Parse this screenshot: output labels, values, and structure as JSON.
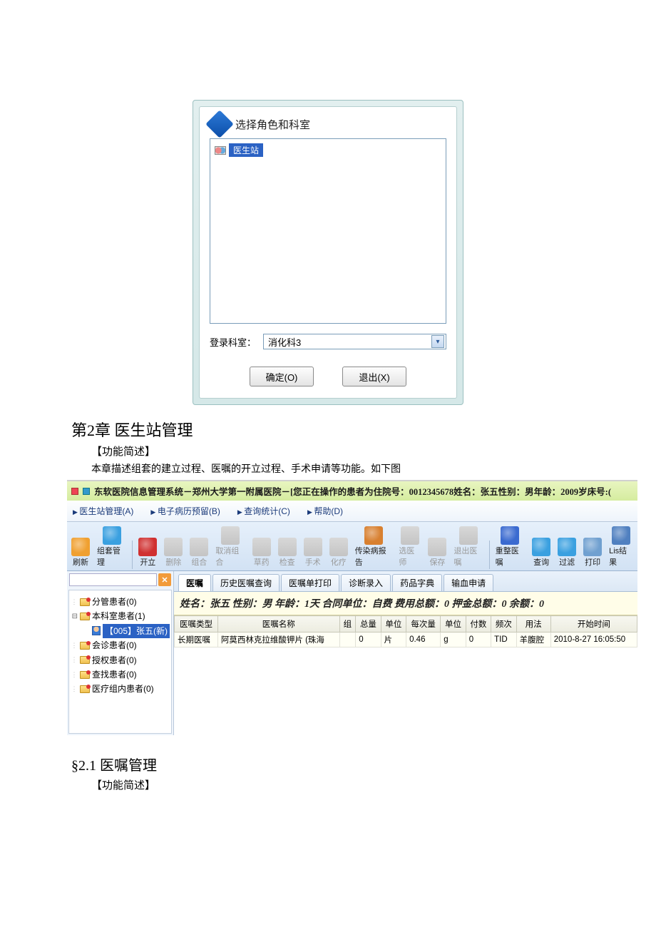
{
  "dialog": {
    "title": "选择角色和科室",
    "role_item": "医生站",
    "dept_label": "登录科室：",
    "dept_value": "消化科3",
    "ok_btn": "确定(O)",
    "exit_btn": "退出(X)"
  },
  "doc": {
    "chapter_title": "第2章  医生站管理",
    "func_heading": "【功能简述】",
    "func_body": "本章描述组套的建立过程、医嘱的开立过程、手术申请等功能。如下图",
    "section_2_1": "§2.1 医嘱管理",
    "func_heading2": "【功能简述】"
  },
  "app": {
    "titlebar": "东软医院信息管理系统－郑州大学第一附属医院－[您正在操作的患者为住院号：0012345678姓名：张五性别：男年龄：2009岁床号:(",
    "menus": [
      "医生站管理(A)",
      "电子病历预留(B)",
      "查询统计(C)",
      "帮助(D)"
    ],
    "toolbar": [
      {
        "label": "刷新",
        "color": "#f0a030",
        "enabled": true
      },
      {
        "label": "组套管理",
        "color": "#3aa0e0",
        "enabled": true
      },
      {
        "label": "开立",
        "color": "#d03030",
        "enabled": true
      },
      {
        "label": "删除",
        "color": "#b0b0b0",
        "enabled": false
      },
      {
        "label": "组合",
        "color": "#b0b0b0",
        "enabled": false
      },
      {
        "label": "取消组合",
        "color": "#b0b0b0",
        "enabled": false
      },
      {
        "label": "草药",
        "color": "#b0b0b0",
        "enabled": false
      },
      {
        "label": "检查",
        "color": "#b0b0b0",
        "enabled": false
      },
      {
        "label": "手术",
        "color": "#b0b0b0",
        "enabled": false
      },
      {
        "label": "化疗",
        "color": "#b0b0b0",
        "enabled": false
      },
      {
        "label": "传染病报告",
        "color": "#d88030",
        "enabled": true
      },
      {
        "label": "选医师",
        "color": "#b0b0b0",
        "enabled": false
      },
      {
        "label": "保存",
        "color": "#b0b0b0",
        "enabled": false
      },
      {
        "label": "退出医嘱",
        "color": "#b0b0b0",
        "enabled": false
      },
      {
        "label": "重整医嘱",
        "color": "#3a6ad0",
        "enabled": true
      },
      {
        "label": "查询",
        "color": "#3aa0e0",
        "enabled": true
      },
      {
        "label": "过滤",
        "color": "#3aa0e0",
        "enabled": true
      },
      {
        "label": "打印",
        "color": "#70a0d0",
        "enabled": true
      },
      {
        "label": "Lis结果",
        "color": "#5080c0",
        "enabled": true
      }
    ],
    "tree": [
      {
        "label": "分管患者(0)",
        "indent": 10,
        "sel": false,
        "icon": "folder"
      },
      {
        "label": "本科室患者(1)",
        "indent": 10,
        "sel": false,
        "icon": "folder",
        "expander": "⊟"
      },
      {
        "label": "【005】张五(新)",
        "indent": 30,
        "sel": true,
        "icon": "person"
      },
      {
        "label": "会诊患者(0)",
        "indent": 10,
        "sel": false,
        "icon": "folder"
      },
      {
        "label": "授权患者(0)",
        "indent": 10,
        "sel": false,
        "icon": "folder"
      },
      {
        "label": "查找患者(0)",
        "indent": 10,
        "sel": false,
        "icon": "folder"
      },
      {
        "label": "医疗组内患者(0)",
        "indent": 10,
        "sel": false,
        "icon": "folder"
      }
    ],
    "tabs": [
      "医嘱",
      "历史医嘱查询",
      "医嘱单打印",
      "诊断录入",
      "药品字典",
      "输血申请"
    ],
    "active_tab": 0,
    "patient_bar": "姓名：张五 性别：男   年龄：1天  合同单位：自费 费用总额：0 押金总额：0 余额：0",
    "grid": {
      "columns": [
        "医嘱类型",
        "医嘱名称",
        "组",
        "总量",
        "单位",
        "每次量",
        "单位",
        "付数",
        "频次",
        "用法",
        "开始时间"
      ],
      "rows": [
        [
          "长期医嘱",
          "阿莫西林克拉维酸钾片 (珠海",
          "",
          "0",
          "片",
          "0.46",
          "g",
          "0",
          "TID",
          "羊腹腔",
          "2010-8-27 16:05:50"
        ]
      ]
    }
  },
  "colors": {
    "dialog_bg": "#e2efef",
    "titlebar_grad": "#d5ec9f",
    "toolbar_grad": "#d2e2f4",
    "patient_bar": "#fffde8",
    "selection": "#2b62c4"
  }
}
